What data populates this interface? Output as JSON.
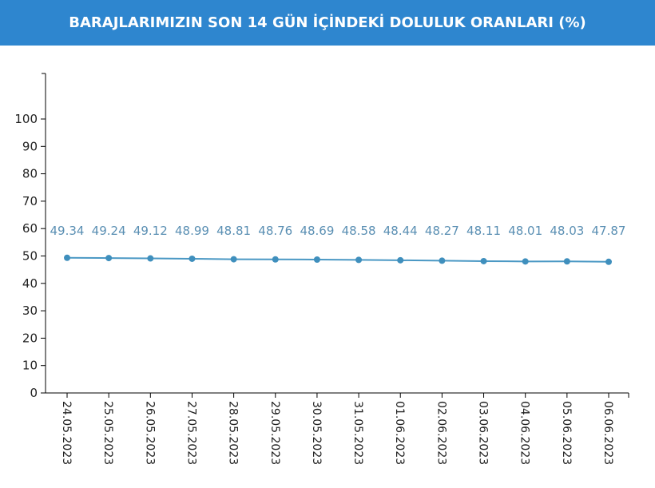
{
  "header": {
    "title": "BARAJLARIMIZIN SON 14 GÜN İÇİNDEKİ DOLULUK ORANLARI (%)"
  },
  "colors": {
    "header_bg": "#2e86cf",
    "series_line": "#4a98c4",
    "series_point": "#3f8fbd",
    "data_label": "#5a8fb3",
    "axis": "#000000"
  },
  "chart_data": {
    "type": "line",
    "title": "BARAJLARIMIZIN SON 14 GÜN İÇİNDEKİ DOLULUK ORANLARI (%)",
    "xlabel": "",
    "ylabel": "",
    "x": [
      "24.05.2023",
      "25.05.2023",
      "26.05.2023",
      "27.05.2023",
      "28.05.2023",
      "29.05.2023",
      "30.05.2023",
      "31.05.2023",
      "01.06.2023",
      "02.06.2023",
      "03.06.2023",
      "04.06.2023",
      "05.06.2023",
      "06.06.2023"
    ],
    "series": [
      {
        "values": [
          49.34,
          49.24,
          49.12,
          48.99,
          48.81,
          48.76,
          48.69,
          48.58,
          48.44,
          48.27,
          48.11,
          48.01,
          48.03,
          47.87
        ],
        "labels": [
          "49.34",
          "49.24",
          "49.12",
          "48.99",
          "48.81",
          "48.76",
          "48.69",
          "48.58",
          "48.44",
          "48.27",
          "48.11",
          "48.01",
          "48.03",
          "47.87"
        ]
      }
    ],
    "ylim": [
      0,
      116
    ],
    "yticks": [
      "0",
      "10",
      "20",
      "30",
      "40",
      "50",
      "60",
      "70",
      "80",
      "90",
      "100"
    ],
    "grid": false,
    "legend": "none"
  }
}
